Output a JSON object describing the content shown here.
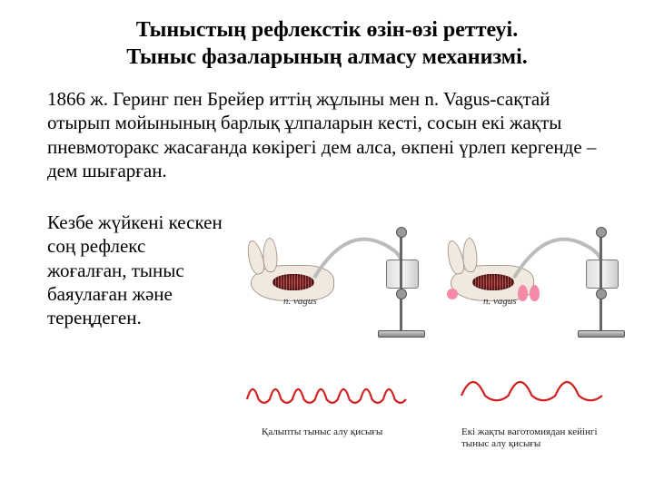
{
  "title_line1": "Тыныстың рефлекстік өзін-өзі реттеуі.",
  "title_line2": "Тыныс фазаларының алмасу механизмі.",
  "paragraph1": "1866 ж. Геринг пен Брейер иттің жұлыны мен n. Vagus-сақтай отырып мойынының барлық ұлпаларын кесті, сосын екі жақты пневмоторакс жасағанда көкірегі дем алса, өкпені үрлеп кергенде – дем шығарған.",
  "paragraph2": "Кезбе жүйкені кескен соң рефлекс жоғалған, тыныс баяулаған және тереңдеген.",
  "nerve_label": "n. vagus",
  "caption_left": "Қалыпты тыныс алу қисығы",
  "caption_right_l1": "Екі жақты ваготомиядан кейінгі",
  "caption_right_l2": "тыныс алу қисығы",
  "colors": {
    "wave": "#d02020",
    "dissection": "#7a1c1c",
    "lung": "#f48aa8",
    "background": "#ffffff",
    "text": "#000000"
  },
  "waves": {
    "normal": {
      "cycles": 7,
      "amplitude": 22,
      "width": 175
    },
    "vagotomy": {
      "cycles": 3,
      "amplitude": 30,
      "width": 155
    }
  }
}
